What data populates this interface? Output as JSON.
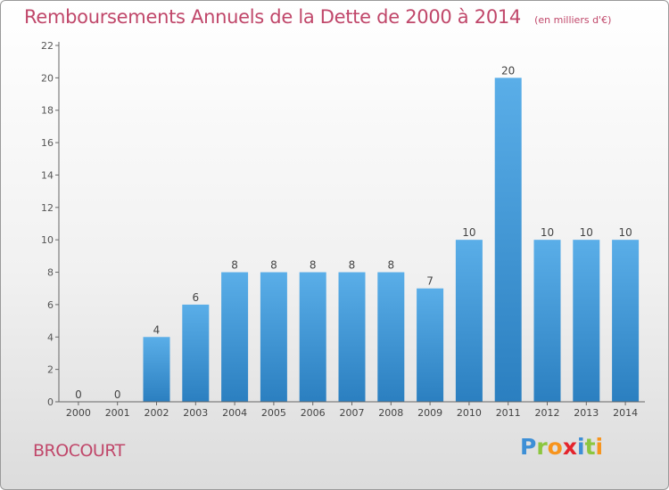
{
  "header": {
    "title": "Remboursements Annuels de la Dette de 2000 à 2014",
    "unit": "(en milliers d'€)"
  },
  "footer": {
    "commune": "BROCOURT",
    "logo_letters": [
      {
        "ch": "P",
        "color": "#3d8fd6"
      },
      {
        "ch": "r",
        "color": "#8cc63f"
      },
      {
        "ch": "o",
        "color": "#f7941d"
      },
      {
        "ch": "x",
        "color": "#e4242c"
      },
      {
        "ch": "i",
        "color": "#3d8fd6"
      },
      {
        "ch": "t",
        "color": "#8cc63f"
      },
      {
        "ch": "i",
        "color": "#f7941d"
      }
    ]
  },
  "colors": {
    "bar_top": "#5aaee8",
    "bar_bottom": "#2b7fc0",
    "text_accent": "#c0476a"
  },
  "chart_data": {
    "type": "bar",
    "categories": [
      "2000",
      "2001",
      "2002",
      "2003",
      "2004",
      "2005",
      "2006",
      "2007",
      "2008",
      "2009",
      "2010",
      "2011",
      "2012",
      "2013",
      "2014"
    ],
    "values": [
      0,
      0,
      4,
      6,
      8,
      8,
      8,
      8,
      8,
      7,
      10,
      20,
      10,
      10,
      10
    ],
    "data_labels": [
      "0",
      "0",
      "4",
      "6",
      "8",
      "8",
      "8",
      "8",
      "8",
      "7",
      "10",
      "20",
      "10",
      "10",
      "10"
    ],
    "yticks": [
      0,
      2,
      4,
      6,
      8,
      10,
      12,
      14,
      16,
      18,
      20,
      22
    ],
    "ylim": [
      0,
      22
    ],
    "grid": false,
    "legend": "none"
  }
}
